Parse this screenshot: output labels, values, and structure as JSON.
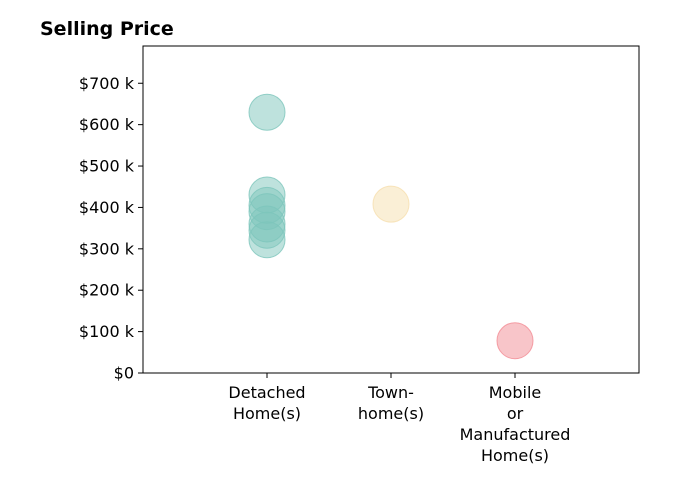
{
  "chart_data": {
    "type": "scatter",
    "title": "Selling Price",
    "xlabel": "",
    "ylabel": "",
    "categories": [
      [
        "Detached",
        "Home(s)"
      ],
      [
        "Town-",
        "home(s)"
      ],
      [
        "Mobile",
        "or",
        "Manufactured",
        "Home(s)"
      ]
    ],
    "ylim": [
      0,
      790000
    ],
    "yticks": [
      {
        "value": 0,
        "label": "$0"
      },
      {
        "value": 100000,
        "label": "$100 k"
      },
      {
        "value": 200000,
        "label": "$200 k"
      },
      {
        "value": 300000,
        "label": "$300 k"
      },
      {
        "value": 400000,
        "label": "$400 k"
      },
      {
        "value": 500000,
        "label": "$500 k"
      },
      {
        "value": 600000,
        "label": "$600 k"
      },
      {
        "value": 700000,
        "label": "$700 k"
      }
    ],
    "grid": false,
    "series": [
      {
        "category_index": 0,
        "color": "#7dc6bc",
        "values": [
          630000,
          430000,
          405000,
          390000,
          360000,
          345000,
          322000
        ]
      },
      {
        "category_index": 1,
        "color": "#f6dfae",
        "values": [
          408000
        ]
      },
      {
        "category_index": 2,
        "color": "#f28b94",
        "values": [
          78000
        ]
      }
    ]
  }
}
